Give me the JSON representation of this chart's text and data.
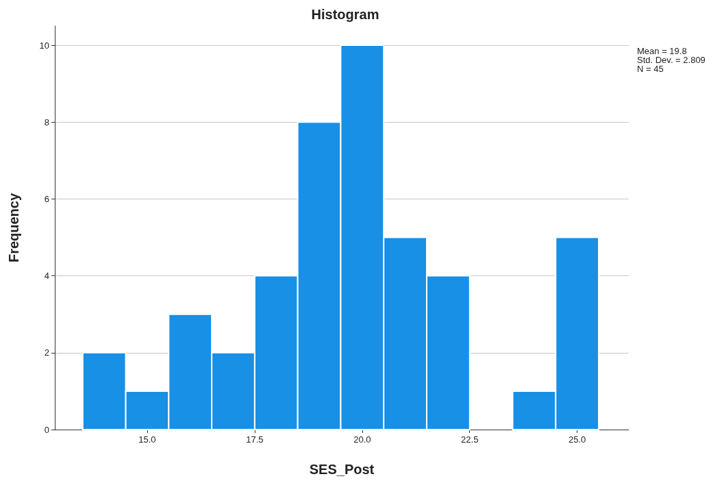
{
  "chart_data": {
    "type": "histogram",
    "title": "Histogram",
    "xlabel": "SES_Post",
    "ylabel": "Frequency",
    "bins": [
      13.5,
      14.5,
      15.5,
      16.5,
      17.5,
      18.5,
      19.5,
      20.5,
      21.5,
      22.5,
      23.5,
      24.5,
      25.5
    ],
    "values": [
      2,
      1,
      3,
      2,
      4,
      8,
      10,
      5,
      4,
      0,
      1,
      5
    ],
    "color": "#1790e6",
    "xlim": [
      12.85,
      26.2
    ],
    "xticks": [
      {
        "value": 15,
        "label": "15.0"
      },
      {
        "value": 17.5,
        "label": "17.5"
      },
      {
        "value": 20,
        "label": "20.0"
      },
      {
        "value": 22.5,
        "label": "22.5"
      },
      {
        "value": 25,
        "label": "25.0"
      }
    ],
    "ylim": [
      0,
      10.5
    ],
    "yticks": [
      0,
      2,
      4,
      6,
      8,
      10
    ],
    "grid": "y",
    "annotations": [
      "Mean = 19.8\nStd. Dev. = 2.809\nN = 45"
    ]
  }
}
